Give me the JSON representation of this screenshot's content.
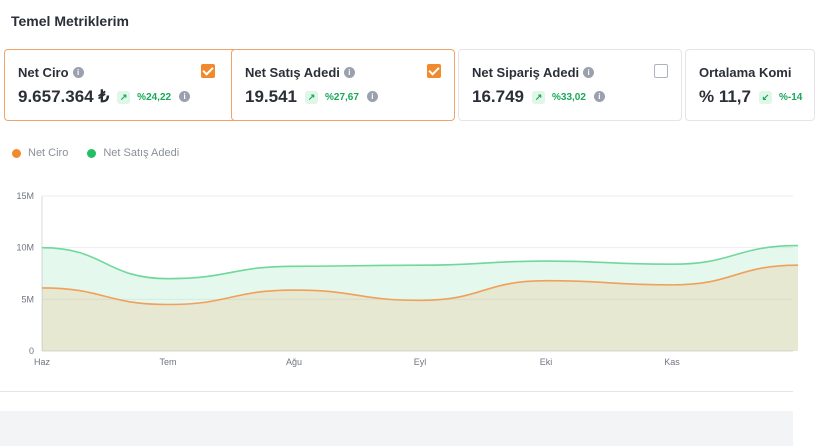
{
  "section": {
    "title": "Temel Metriklerim"
  },
  "cards": [
    {
      "name": "Net Ciro",
      "value": "9.657.364 ₺",
      "change": "%24,22",
      "trend": "up",
      "checked": true
    },
    {
      "name": "Net Satış Adedi",
      "value": "19.541",
      "change": "%27,67",
      "trend": "up",
      "checked": true
    },
    {
      "name": "Net Sipariş Adedi",
      "value": "16.749",
      "change": "%33,02",
      "trend": "up",
      "checked": false
    },
    {
      "name": "Ortalama Komi",
      "value": "% 11,7",
      "change": "%-14",
      "trend": "down",
      "checked": false
    }
  ],
  "icons": {
    "info": "info-icon",
    "trend_up": "arrow-up-right-icon",
    "trend_down": "arrow-down-left-icon",
    "check": "checkbox-checked-icon"
  },
  "colors": {
    "accent": "#f08a2c",
    "green": "#22c063",
    "net_ciro": "#f0a05a",
    "net_satis": "#6fd89a"
  },
  "chart_data": {
    "type": "area",
    "x": [
      "Haz",
      "Tem",
      "Ağu",
      "Eyl",
      "Eki",
      "Kas",
      ""
    ],
    "series": [
      {
        "name": "Net Ciro",
        "values": [
          6.1,
          4.5,
          5.9,
          4.9,
          6.8,
          6.4,
          8.3
        ]
      },
      {
        "name": "Net Satış Adedi",
        "values": [
          10.0,
          7.0,
          8.2,
          8.3,
          8.7,
          8.4,
          10.2
        ]
      }
    ],
    "yticks": [
      "0",
      "5M",
      "10M",
      "15M"
    ],
    "ylim": [
      0,
      15
    ],
    "legend": "top-left",
    "grid": true
  }
}
